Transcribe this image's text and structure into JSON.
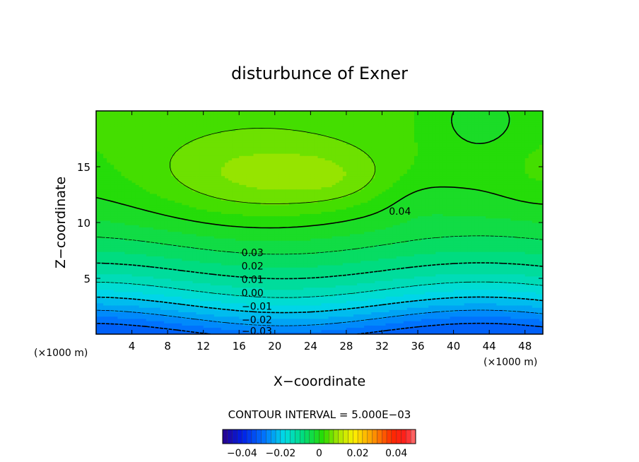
{
  "chart_data": {
    "type": "heatmap",
    "title": "disturbunce of Exner",
    "xlabel": "X−coordinate",
    "ylabel": "Z−coordinate",
    "x_unit": "(×1000 m)",
    "x_unit_right": "(×1000 m)",
    "xlim": [
      0,
      50
    ],
    "ylim": [
      0,
      20
    ],
    "xticks": [
      4,
      8,
      12,
      16,
      20,
      24,
      28,
      32,
      36,
      40,
      44,
      48
    ],
    "yticks": [
      5,
      10,
      15
    ],
    "contour_interval_text": "CONTOUR INTERVAL = 5.000E−03",
    "contour_labels": [
      {
        "text": "0.04",
        "x": 34,
        "z": 11
      },
      {
        "text": "0.03",
        "x": 17.5,
        "z": 7.3
      },
      {
        "text": "0.02",
        "x": 17.5,
        "z": 6.1
      },
      {
        "text": "0.01",
        "x": 17.5,
        "z": 4.9
      },
      {
        "text": "0.00",
        "x": 17.5,
        "z": 3.7
      },
      {
        "text": "−0.01",
        "x": 18,
        "z": 2.5
      },
      {
        "text": "−0.02",
        "x": 18,
        "z": 1.3
      },
      {
        "text": "−0.03",
        "x": 18,
        "z": 0.3
      }
    ],
    "value_range": [
      -0.05,
      0.05
    ],
    "colorbar_ticks": [
      "−0.04",
      "−0.02",
      "0",
      "0.02",
      "0.04"
    ],
    "colorbar_tick_values": [
      -0.04,
      -0.02,
      0,
      0.02,
      0.04
    ]
  }
}
